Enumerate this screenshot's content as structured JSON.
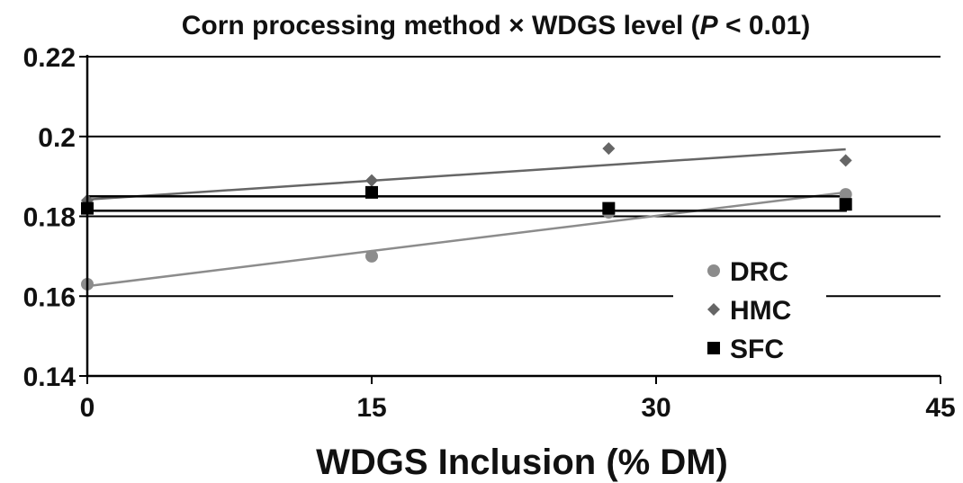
{
  "chart_data": {
    "type": "scatter",
    "title_main": "Corn processing method × WDGS level (",
    "title_italic": "P",
    "title_tail": " < 0.01)",
    "xlabel": "WDGS Inclusion (% DM)",
    "ylabel": "",
    "xlim": [
      0,
      45
    ],
    "ylim": [
      0.14,
      0.22
    ],
    "x_ticks": [
      "0",
      "15",
      "30",
      "45"
    ],
    "y_ticks": [
      "0.14",
      "0.16",
      "0.18",
      "0.2",
      "0.22"
    ],
    "grid": "horizontal",
    "legend_position": "bottom-right",
    "series": [
      {
        "name": "DRC",
        "marker": "circle",
        "color": "#8c8c8c",
        "x": [
          0,
          15,
          27.5,
          40
        ],
        "y": [
          0.163,
          0.17,
          0.181,
          0.1855
        ],
        "trend": [
          [
            0,
            0.1625
          ],
          [
            40,
            0.186
          ]
        ]
      },
      {
        "name": "HMC",
        "marker": "diamond",
        "color": "#666666",
        "x": [
          0,
          15,
          27.5,
          40
        ],
        "y": [
          0.184,
          0.189,
          0.197,
          0.194
        ],
        "trend": [
          [
            0,
            0.1842
          ],
          [
            40,
            0.1968
          ]
        ]
      },
      {
        "name": "SFC",
        "marker": "square",
        "color": "#000000",
        "x": [
          0,
          15,
          27.5,
          40
        ],
        "y": [
          0.182,
          0.186,
          0.182,
          0.183
        ],
        "trend": [
          [
            0,
            0.1832
          ],
          [
            40,
            0.1832
          ]
        ]
      }
    ]
  }
}
